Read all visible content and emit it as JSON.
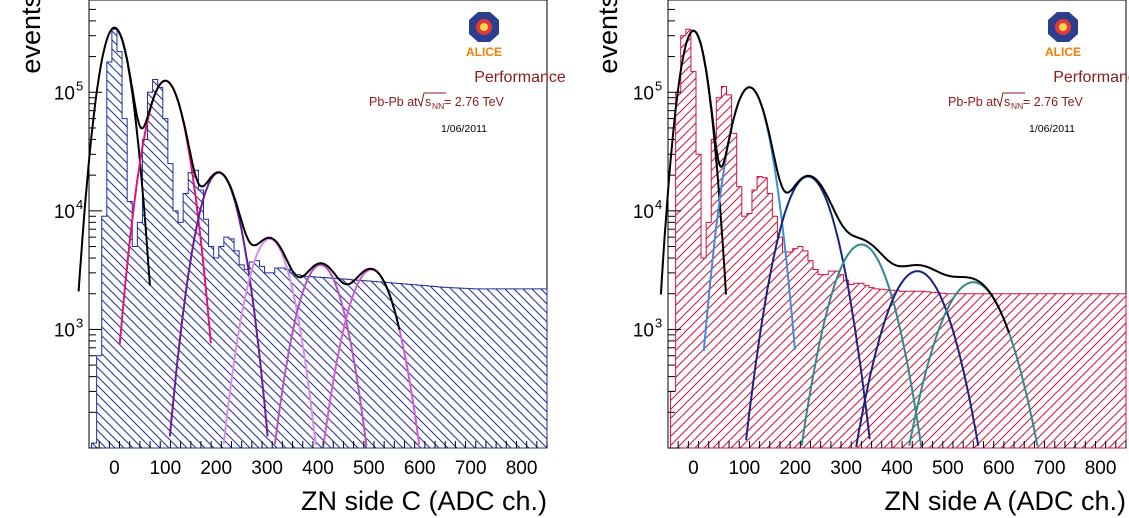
{
  "chart_data": [
    {
      "type": "histogram",
      "ylabel": "events",
      "xlabel": "ZN side C (ADC ch.)",
      "y_scale": "log",
      "xlim": [
        -50,
        850
      ],
      "ylim": [
        100,
        600000
      ],
      "x_ticks": [
        0,
        100,
        200,
        300,
        400,
        500,
        600,
        700,
        800
      ],
      "y_ticks": [
        {
          "value": 1000,
          "base": "10",
          "exp": "3"
        },
        {
          "value": 10000,
          "base": "10",
          "exp": "4"
        },
        {
          "value": 100000,
          "base": "10",
          "exp": "5"
        }
      ],
      "hist_color": "#1f2f9a",
      "hatch": "diagonal-backslash",
      "histogram": {
        "bin_width": 10,
        "x_start": -45,
        "values": [
          110,
          600,
          9000,
          180000,
          340000,
          220000,
          60000,
          12000,
          5000,
          8000,
          40000,
          100000,
          128000,
          110000,
          60000,
          25000,
          10000,
          8000,
          14000,
          21000,
          22000,
          15000,
          8500,
          5000,
          4000,
          5000,
          6000,
          5800,
          4600,
          3500,
          3200,
          3700,
          3800,
          3400,
          3000,
          3000,
          3300,
          3300,
          3200,
          3000,
          2900,
          2850,
          2800,
          2780,
          2760,
          2740,
          2720,
          2700,
          2680,
          2660,
          2640,
          2620,
          2600,
          2580,
          2560,
          2540,
          2520,
          2500,
          2480,
          2460,
          2440,
          2420,
          2400,
          2380,
          2360,
          2340,
          2320,
          2300,
          2280,
          2260,
          2250,
          2240,
          2230,
          2220,
          2210,
          2200,
          2200,
          2200,
          2200,
          2200,
          2200,
          2200,
          2200,
          2200,
          2200,
          2200,
          2200,
          2200,
          2200,
          2200
        ]
      },
      "fits": [
        {
          "mean": 0,
          "amp": 350000,
          "sigma": 22,
          "color": "#000000"
        },
        {
          "mean": 100,
          "amp": 125000,
          "sigma": 28,
          "color": "#e0147a"
        },
        {
          "mean": 205,
          "amp": 21000,
          "sigma": 30,
          "color": "#6a1b9a"
        },
        {
          "mean": 305,
          "amp": 5800,
          "sigma": 32,
          "color": "#d98ee8"
        },
        {
          "mean": 405,
          "amp": 3500,
          "sigma": 34,
          "color": "#b455c2"
        },
        {
          "mean": 505,
          "amp": 3200,
          "sigma": 36,
          "color": "#d45bd4"
        }
      ],
      "total_fit": {
        "x_range": [
          -5,
          560
        ],
        "color": "#000000"
      },
      "logo_text": "ALICE",
      "annotation": {
        "performance": "Performance",
        "system_prefix": "Pb-Pb at",
        "sqrt_s": "s",
        "subscript": "NN",
        "energy_text": " = 2.76 TeV",
        "date": "1/06/2011"
      }
    },
    {
      "type": "histogram",
      "ylabel": "events",
      "xlabel": "ZN side A (ADC ch.)",
      "y_scale": "log",
      "xlim": [
        -50,
        850
      ],
      "ylim": [
        100,
        600000
      ],
      "x_ticks": [
        0,
        100,
        200,
        300,
        400,
        500,
        600,
        700,
        800
      ],
      "y_ticks": [
        {
          "value": 1000,
          "base": "10",
          "exp": "3"
        },
        {
          "value": 10000,
          "base": "10",
          "exp": "4"
        },
        {
          "value": 100000,
          "base": "10",
          "exp": "5"
        }
      ],
      "hist_color": "#d0103a",
      "hatch": "diagonal-slash",
      "histogram": {
        "bin_width": 10,
        "x_start": -45,
        "values": [
          300,
          100000,
          300000,
          340000,
          150000,
          30000,
          4000,
          8000,
          40000,
          90000,
          112000,
          95000,
          45000,
          16000,
          9000,
          9500,
          15000,
          19500,
          19000,
          14000,
          9000,
          6000,
          4500,
          4500,
          4800,
          5000,
          4600,
          3800,
          3200,
          2900,
          2900,
          3100,
          3100,
          2900,
          2600,
          2400,
          2450,
          2450,
          2350,
          2250,
          2200,
          2180,
          2160,
          2140,
          2120,
          2100,
          2100,
          2100,
          2100,
          2100,
          2080,
          2060,
          2040,
          2020,
          2000,
          2000,
          2000,
          2000,
          2000,
          2000,
          2000,
          2000,
          2000,
          2000,
          2000,
          2000,
          2000,
          2000,
          2000,
          2000,
          2000,
          2000,
          2000,
          2000,
          2000,
          2000,
          2000,
          2000,
          2000,
          2000,
          2000,
          2000,
          2000,
          2000,
          2000,
          2000,
          2000,
          2000,
          2000,
          2000
        ]
      },
      "fits": [
        {
          "mean": 0,
          "amp": 330000,
          "sigma": 20,
          "color": "#000000"
        },
        {
          "mean": 110,
          "amp": 110000,
          "sigma": 28,
          "color": "#3a8fd8"
        },
        {
          "mean": 225,
          "amp": 19500,
          "sigma": 38,
          "color": "#1a237e"
        },
        {
          "mean": 330,
          "amp": 5200,
          "sigma": 42,
          "color": "#2e8b8b"
        },
        {
          "mean": 440,
          "amp": 3100,
          "sigma": 46,
          "color": "#1a237e"
        },
        {
          "mean": 550,
          "amp": 2500,
          "sigma": 50,
          "color": "#2e8b8b"
        }
      ],
      "total_fit": {
        "x_range": [
          -5,
          620
        ],
        "color": "#000000"
      },
      "logo_text": "ALICE",
      "annotation": {
        "performance": "Performance",
        "system_prefix": "Pb-Pb at",
        "sqrt_s": "s",
        "subscript": "NN",
        "energy_text": " = 2.76 TeV",
        "date": "1/06/2011"
      }
    }
  ]
}
